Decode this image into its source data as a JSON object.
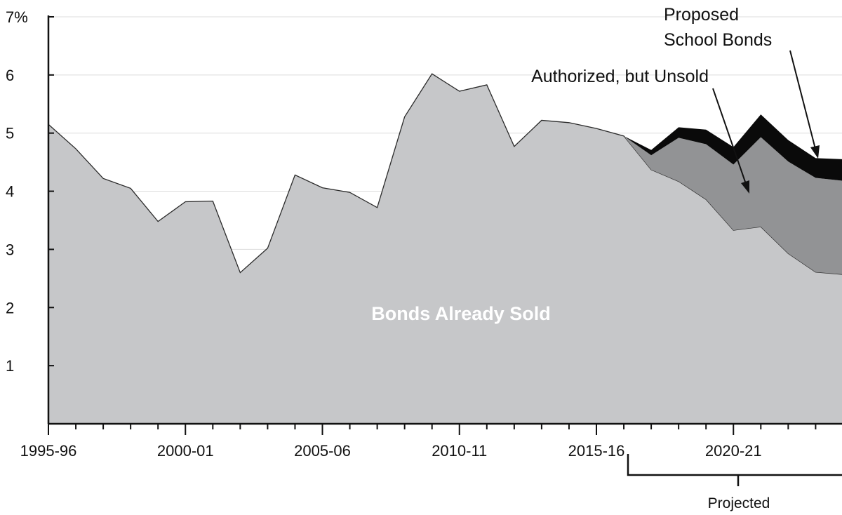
{
  "chart_data": {
    "type": "area",
    "stacked": true,
    "x": [
      "1995-96",
      "1996-97",
      "1997-98",
      "1998-99",
      "1999-00",
      "2000-01",
      "2001-02",
      "2002-03",
      "2003-04",
      "2004-05",
      "2005-06",
      "2006-07",
      "2007-08",
      "2008-09",
      "2009-10",
      "2010-11",
      "2011-12",
      "2012-13",
      "2013-14",
      "2014-15",
      "2015-16",
      "2016-17",
      "2017-18",
      "2018-19",
      "2019-20",
      "2020-21",
      "2021-22",
      "2022-23",
      "2023-24",
      "2024-25"
    ],
    "x_tick_labels": [
      "1995-96",
      "2000-01",
      "2005-06",
      "2010-11",
      "2015-16",
      "2020-21"
    ],
    "y_tick_labels": [
      "7%",
      "6",
      "5",
      "4",
      "3",
      "2",
      "1"
    ],
    "y_ticks": [
      7,
      6,
      5,
      4,
      3,
      2,
      1
    ],
    "ylim": [
      0,
      7
    ],
    "grid": true,
    "series": [
      {
        "name": "Bonds Already Sold",
        "color": "#c6c7c9",
        "values": [
          5.15,
          4.73,
          4.22,
          4.05,
          3.48,
          3.82,
          3.83,
          2.6,
          3.02,
          4.28,
          4.06,
          3.98,
          3.72,
          5.28,
          6.02,
          5.72,
          5.83,
          4.77,
          5.22,
          5.18,
          5.08,
          4.95,
          4.37,
          4.17,
          3.86,
          3.33,
          3.39,
          2.93,
          2.61,
          2.57
        ]
      },
      {
        "name": "Authorized, but Unsold",
        "color": "#929395",
        "values": [
          0,
          0,
          0,
          0,
          0,
          0,
          0,
          0,
          0,
          0,
          0,
          0,
          0,
          0,
          0,
          0,
          0,
          0,
          0,
          0,
          0,
          0,
          0.25,
          0.75,
          0.95,
          1.13,
          1.54,
          1.58,
          1.62,
          1.61
        ]
      },
      {
        "name": "Proposed School Bonds",
        "color": "#0a0a0a",
        "values": [
          0,
          0,
          0,
          0,
          0,
          0,
          0,
          0,
          0,
          0,
          0,
          0,
          0,
          0,
          0,
          0,
          0,
          0,
          0,
          0,
          0,
          0,
          0.09,
          0.18,
          0.25,
          0.3,
          0.39,
          0.37,
          0.34,
          0.37
        ]
      }
    ],
    "projected_label": "Projected",
    "projected_from": "2016-17"
  }
}
